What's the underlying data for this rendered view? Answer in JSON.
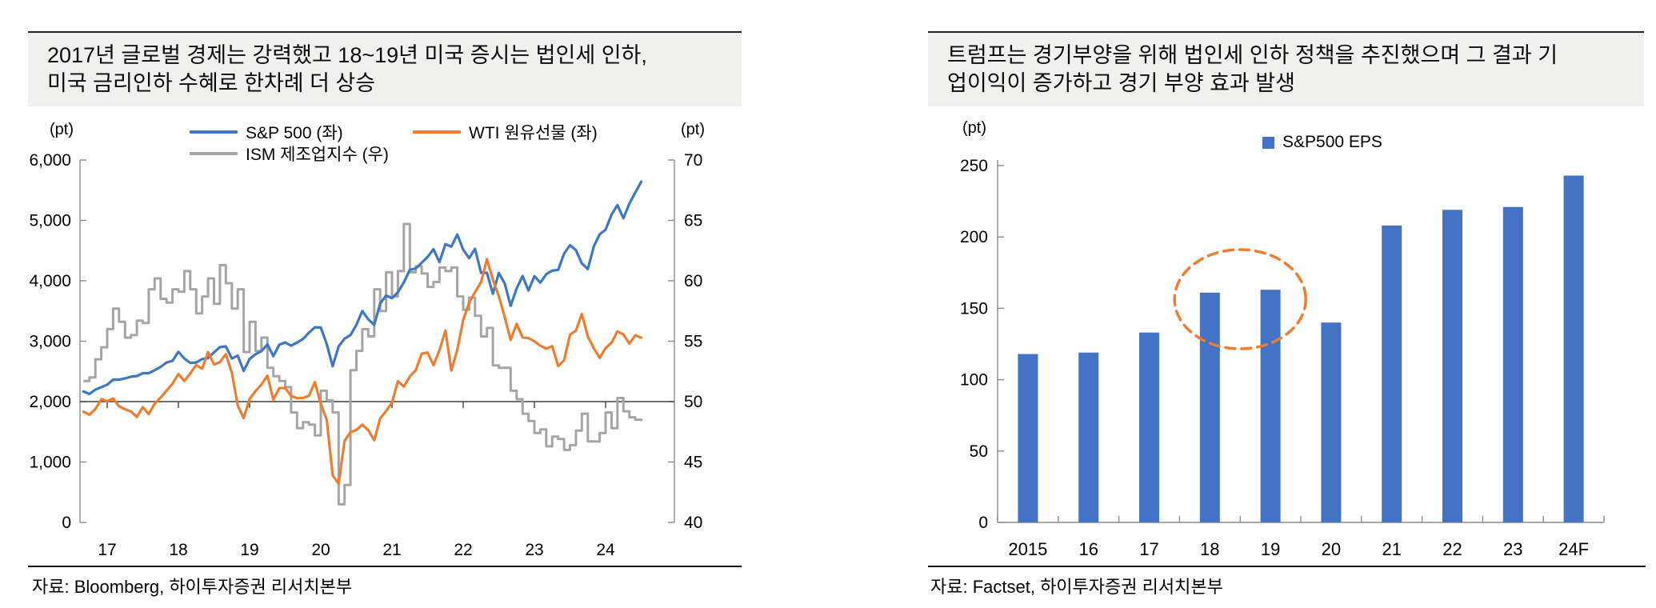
{
  "page": {
    "background": "#ffffff"
  },
  "panels": {
    "left": {
      "title_line1": "2017년 글로벌 경제는 강력했고 18~19년 미국 증시는 법인세 인하,",
      "title_line2": "미국 금리인하 수혜로 한차례 더 상승",
      "unit_left": "(pt)",
      "unit_right": "(pt)",
      "source": "자료: Bloomberg, 하이투자증권 리서치본부"
    },
    "right": {
      "title_line1": "트럼프는 경기부양을 위해 법인세 인하 정책을 추진했으며 그 결과 기",
      "title_line2": "업이익이 증가하고 경기 부양 효과 발생",
      "unit_left": "(pt)",
      "source": "자료: Factset, 하이투자증권 리서치본부"
    }
  },
  "chart_data": [
    {
      "type": "line",
      "title": "2017년 글로벌 경제는 강력했고 18~19년 미국 증시는 법인세 인하, 미국 금리인하 수혜로 한차례 더 상승",
      "source": "자료: Bloomberg, 하이투자증권 리서치본부",
      "x_start": "2016-09",
      "x_end": "2024-07",
      "freq": "monthly",
      "x_tick_labels": [
        "17",
        "18",
        "19",
        "20",
        "21",
        "22",
        "23",
        "24"
      ],
      "ylabel_left": "(pt)",
      "ylabel_right": "(pt)",
      "ylim_left": [
        0,
        6000
      ],
      "yticks_left": [
        "0",
        "1,000",
        "2,000",
        "3,000",
        "4,000",
        "5,000",
        "6,000"
      ],
      "ylim_right": [
        40,
        70
      ],
      "yticks_right": [
        "40",
        "45",
        "50",
        "55",
        "60",
        "65",
        "70"
      ],
      "x_axis_cross_right_value": 50,
      "grid": false,
      "legend_position": "top",
      "series": [
        {
          "name": "S&P 500 (좌)",
          "axis": "left",
          "color": "#3d78c3",
          "values": [
            2168,
            2126,
            2199,
            2239,
            2279,
            2364,
            2363,
            2384,
            2412,
            2423,
            2470,
            2472,
            2519,
            2575,
            2648,
            2674,
            2824,
            2714,
            2641,
            2648,
            2705,
            2718,
            2816,
            2902,
            2914,
            2712,
            2760,
            2507,
            2704,
            2784,
            2834,
            2946,
            2752,
            2942,
            2980,
            2926,
            2977,
            3038,
            3141,
            3231,
            3226,
            2954,
            2585,
            2912,
            3044,
            3100,
            3271,
            3500,
            3363,
            3270,
            3622,
            3756,
            3714,
            3811,
            3973,
            4181,
            4204,
            4298,
            4395,
            4523,
            4308,
            4605,
            4567,
            4766,
            4516,
            4374,
            4530,
            4132,
            4132,
            3785,
            4130,
            3955,
            3586,
            3872,
            4080,
            3840,
            4077,
            3970,
            4109,
            4169,
            4180,
            4450,
            4589,
            4508,
            4288,
            4194,
            4568,
            4770,
            4846,
            5096,
            5254,
            5036,
            5278,
            5460,
            5640
          ]
        },
        {
          "name": "WTI 원유선물 (좌)",
          "axis": "left",
          "unit": "USD/bbl",
          "display_scale_on_left_axis": 38,
          "color": "#ed7d31",
          "values": [
            48.2,
            46.9,
            49.4,
            53.7,
            52.8,
            54.0,
            50.6,
            49.3,
            48.3,
            46.0,
            50.2,
            47.2,
            51.7,
            54.4,
            57.4,
            60.4,
            64.7,
            61.6,
            64.9,
            68.6,
            67.0,
            74.2,
            68.8,
            69.8,
            73.3,
            65.3,
            50.9,
            45.4,
            53.8,
            57.2,
            60.1,
            63.9,
            53.5,
            58.5,
            58.6,
            55.1,
            54.1,
            54.2,
            55.2,
            61.1,
            51.6,
            44.8,
            20.5,
            16.9,
            35.5,
            39.3,
            40.3,
            42.6,
            40.2,
            35.8,
            45.3,
            48.5,
            52.2,
            61.5,
            59.2,
            63.6,
            66.3,
            73.5,
            74.0,
            68.5,
            75.0,
            83.6,
            66.2,
            75.2,
            88.2,
            95.7,
            100.3,
            104.7,
            114.7,
            105.8,
            98.6,
            89.5,
            79.5,
            86.5,
            80.6,
            80.3,
            78.9,
            77.0,
            75.7,
            76.8,
            68.1,
            70.6,
            81.8,
            83.6,
            90.8,
            81.0,
            75.9,
            71.7,
            75.9,
            78.3,
            83.2,
            81.9,
            77.9,
            81.5,
            80.5
          ]
        },
        {
          "name": "ISM 제조업지수 (우)",
          "axis": "right",
          "color": "#a5a5a5",
          "values": [
            51.7,
            52.0,
            53.5,
            54.5,
            56.0,
            57.7,
            56.6,
            55.3,
            55.5,
            56.7,
            56.5,
            59.3,
            60.2,
            58.5,
            58.2,
            59.3,
            59.1,
            60.8,
            59.3,
            57.3,
            58.7,
            60.2,
            58.1,
            61.3,
            59.8,
            57.7,
            59.3,
            54.1,
            56.6,
            54.2,
            55.3,
            52.8,
            52.1,
            51.7,
            51.2,
            49.1,
            47.8,
            48.3,
            48.1,
            47.2,
            50.9,
            50.1,
            49.1,
            41.5,
            43.1,
            52.6,
            54.2,
            56.0,
            55.4,
            59.3,
            57.5,
            60.7,
            58.7,
            60.8,
            64.7,
            60.7,
            61.2,
            60.6,
            59.5,
            59.9,
            61.1,
            60.8,
            61.1,
            58.7,
            57.6,
            58.6,
            57.1,
            55.4,
            56.1,
            53.0,
            52.8,
            52.8,
            50.9,
            50.2,
            49.0,
            48.4,
            47.4,
            47.7,
            46.3,
            47.1,
            46.9,
            46.0,
            46.4,
            47.6,
            49.0,
            46.7,
            46.7,
            47.4,
            49.1,
            47.8,
            50.3,
            49.2,
            48.7,
            48.5,
            48.4
          ]
        }
      ]
    },
    {
      "type": "bar",
      "legend": "S&P500 EPS",
      "title": "트럼프는 경기부양을 위해 법인세 인하 정책을 추진했으며 그 결과 기업이익이 증가하고 경기 부양 효과 발생",
      "source": "자료: Factset, 하이투자증권 리서치본부",
      "categories": [
        "2015",
        "16",
        "17",
        "18",
        "19",
        "20",
        "21",
        "22",
        "23",
        "24F"
      ],
      "values": [
        118,
        119,
        133,
        161,
        163,
        140,
        208,
        219,
        221,
        243
      ],
      "ylabel": "(pt)",
      "ylim": [
        0,
        250
      ],
      "yticks": [
        "0",
        "50",
        "100",
        "150",
        "200",
        "250"
      ],
      "bar_color": "#4472c4",
      "grid": false,
      "annotation_ellipse": {
        "around_categories": [
          "18",
          "19"
        ],
        "color": "#ed7d31",
        "style": "dashed"
      }
    }
  ]
}
